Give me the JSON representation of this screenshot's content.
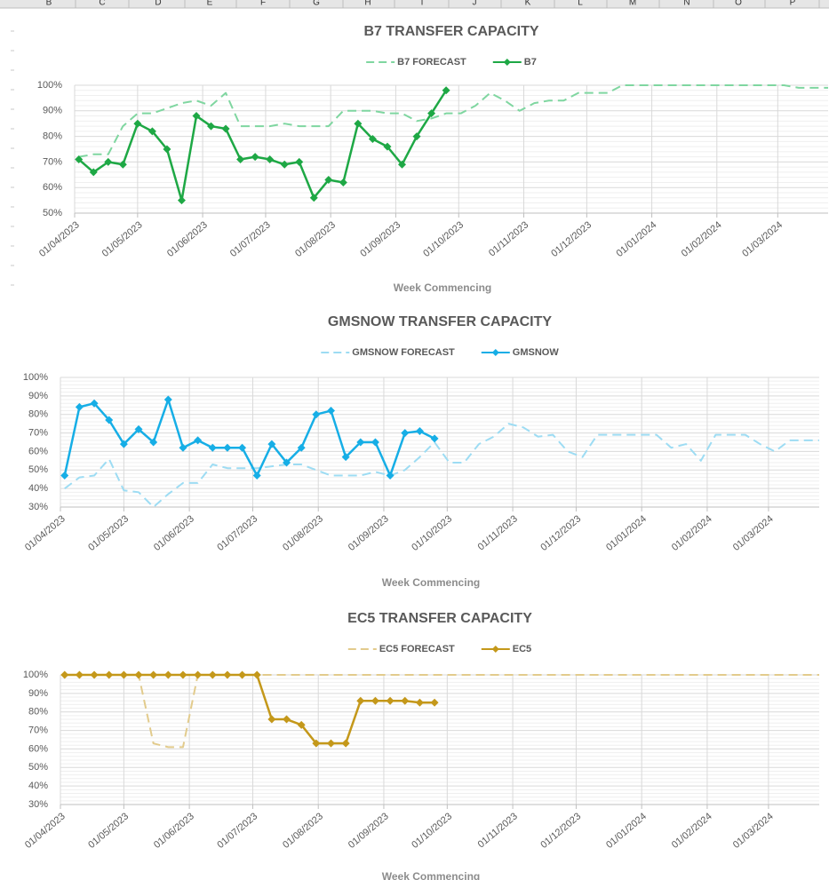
{
  "sheet": {
    "columns": [
      "B",
      "C",
      "D",
      "E",
      "F",
      "G",
      "H",
      "I",
      "J",
      "K",
      "L",
      "M",
      "N",
      "O",
      "P"
    ]
  },
  "chart_data": [
    {
      "type": "line",
      "title": "B7 TRANSFER CAPACITY",
      "x_label": "Week Commencing",
      "grid": true,
      "legend": "top",
      "x": [
        2,
        9,
        16,
        23,
        30,
        37,
        44,
        51,
        58,
        65,
        72,
        79,
        86,
        93,
        100,
        107,
        114,
        121,
        128,
        135,
        142,
        149,
        156,
        163,
        170,
        177,
        184,
        191,
        198,
        205,
        212,
        219,
        226,
        233,
        240,
        247,
        254,
        261,
        268,
        275,
        282,
        289,
        296,
        303,
        310,
        317,
        324,
        331,
        338,
        345,
        352,
        359
      ],
      "xlim": [
        0,
        359
      ],
      "xticks": [
        {
          "value": 0,
          "label": "01/04/2023"
        },
        {
          "value": 30,
          "label": "01/05/2023"
        },
        {
          "value": 61,
          "label": "01/06/2023"
        },
        {
          "value": 91,
          "label": "01/07/2023"
        },
        {
          "value": 122,
          "label": "01/08/2023"
        },
        {
          "value": 153,
          "label": "01/09/2023"
        },
        {
          "value": 183,
          "label": "01/10/2023"
        },
        {
          "value": 214,
          "label": "01/11/2023"
        },
        {
          "value": 244,
          "label": "01/12/2023"
        },
        {
          "value": 275,
          "label": "01/01/2024"
        },
        {
          "value": 306,
          "label": "01/02/2024"
        },
        {
          "value": 335,
          "label": "01/03/2024"
        }
      ],
      "ylim": [
        50,
        100
      ],
      "yticks": [
        {
          "value": 50,
          "label": "50%"
        },
        {
          "value": 60,
          "label": "60%"
        },
        {
          "value": 70,
          "label": "70%"
        },
        {
          "value": 80,
          "label": "80%"
        },
        {
          "value": 90,
          "label": "90%"
        },
        {
          "value": 100,
          "label": "100%"
        }
      ],
      "series": [
        {
          "name": "B7 FORECAST",
          "color": "#7fd6a0",
          "dashed": true,
          "markers": false,
          "values": [
            72,
            73,
            73,
            84,
            89,
            89,
            91,
            93,
            94,
            92,
            97,
            84,
            84,
            84,
            85,
            84,
            84,
            84,
            90,
            90,
            90,
            89,
            89,
            86,
            87,
            89,
            89,
            92,
            97,
            94,
            90,
            93,
            94,
            94,
            97,
            97,
            97,
            100,
            100,
            100,
            100,
            100,
            100,
            100,
            100,
            100,
            100,
            100,
            100,
            99,
            99,
            99
          ]
        },
        {
          "name": "B7",
          "color": "#1ea845",
          "dashed": false,
          "markers": true,
          "values": [
            71,
            66,
            70,
            69,
            85,
            82,
            75,
            55,
            88,
            84,
            83,
            71,
            72,
            71,
            69,
            70,
            56,
            63,
            62,
            85,
            79,
            76,
            69,
            80,
            89,
            98,
            null,
            null,
            null,
            null,
            null,
            null,
            null,
            null,
            null,
            null,
            null,
            null,
            null,
            null,
            null,
            null,
            null,
            null,
            null,
            null,
            null,
            null,
            null,
            null,
            null,
            null
          ]
        }
      ]
    },
    {
      "type": "line",
      "title": "GMSNOW TRANSFER CAPACITY",
      "x_label": "Week Commencing",
      "grid": true,
      "legend": "top",
      "x": [
        2,
        9,
        16,
        23,
        30,
        37,
        44,
        51,
        58,
        65,
        72,
        79,
        86,
        93,
        100,
        107,
        114,
        121,
        128,
        135,
        142,
        149,
        156,
        163,
        170,
        177,
        184,
        191,
        198,
        205,
        212,
        219,
        226,
        233,
        240,
        247,
        254,
        261,
        268,
        275,
        282,
        289,
        296,
        303,
        310,
        317,
        324,
        331,
        338,
        345,
        352,
        359
      ],
      "xlim": [
        0,
        359
      ],
      "xticks": [
        {
          "value": 0,
          "label": "01/04/2023"
        },
        {
          "value": 30,
          "label": "01/05/2023"
        },
        {
          "value": 61,
          "label": "01/06/2023"
        },
        {
          "value": 91,
          "label": "01/07/2023"
        },
        {
          "value": 122,
          "label": "01/08/2023"
        },
        {
          "value": 153,
          "label": "01/09/2023"
        },
        {
          "value": 183,
          "label": "01/10/2023"
        },
        {
          "value": 214,
          "label": "01/11/2023"
        },
        {
          "value": 244,
          "label": "01/12/2023"
        },
        {
          "value": 275,
          "label": "01/01/2024"
        },
        {
          "value": 306,
          "label": "01/02/2024"
        },
        {
          "value": 335,
          "label": "01/03/2024"
        }
      ],
      "ylim": [
        30,
        100
      ],
      "yticks": [
        {
          "value": 30,
          "label": "30%"
        },
        {
          "value": 40,
          "label": "40%"
        },
        {
          "value": 50,
          "label": "50%"
        },
        {
          "value": 60,
          "label": "60%"
        },
        {
          "value": 70,
          "label": "70%"
        },
        {
          "value": 80,
          "label": "80%"
        },
        {
          "value": 90,
          "label": "90%"
        },
        {
          "value": 100,
          "label": "100%"
        }
      ],
      "series": [
        {
          "name": "GMSNOW FORECAST",
          "color": "#9ddcf3",
          "dashed": true,
          "markers": false,
          "values": [
            40,
            46,
            47,
            56,
            39,
            38,
            30,
            37,
            43,
            43,
            53,
            51,
            51,
            51,
            52,
            53,
            53,
            50,
            47,
            47,
            47,
            49,
            47,
            50,
            57,
            65,
            54,
            54,
            64,
            68,
            75,
            73,
            68,
            69,
            60,
            57,
            69,
            69,
            69,
            69,
            69,
            62,
            64,
            55,
            69,
            69,
            69,
            64,
            60,
            66,
            66,
            66
          ]
        },
        {
          "name": "GMSNOW",
          "color": "#16aee6",
          "dashed": false,
          "markers": true,
          "values": [
            47,
            84,
            86,
            77,
            64,
            72,
            65,
            88,
            62,
            66,
            62,
            62,
            62,
            47,
            64,
            54,
            62,
            80,
            82,
            57,
            65,
            65,
            47,
            70,
            71,
            67,
            null,
            null,
            null,
            null,
            null,
            null,
            null,
            null,
            null,
            null,
            null,
            null,
            null,
            null,
            null,
            null,
            null,
            null,
            null,
            null,
            null,
            null,
            null,
            null,
            null,
            null
          ]
        }
      ]
    },
    {
      "type": "line",
      "title": "EC5 TRANSFER CAPACITY",
      "x_label": "Week Commencing",
      "grid": true,
      "legend": "top",
      "x": [
        2,
        9,
        16,
        23,
        30,
        37,
        44,
        51,
        58,
        65,
        72,
        79,
        86,
        93,
        100,
        107,
        114,
        121,
        128,
        135,
        142,
        149,
        156,
        163,
        170,
        177,
        184,
        191,
        198,
        205,
        212,
        219,
        226,
        233,
        240,
        247,
        254,
        261,
        268,
        275,
        282,
        289,
        296,
        303,
        310,
        317,
        324,
        331,
        338,
        345,
        352,
        359
      ],
      "xlim": [
        0,
        359
      ],
      "xticks": [
        {
          "value": 0,
          "label": "01/04/2023"
        },
        {
          "value": 30,
          "label": "01/05/2023"
        },
        {
          "value": 61,
          "label": "01/06/2023"
        },
        {
          "value": 91,
          "label": "01/07/2023"
        },
        {
          "value": 122,
          "label": "01/08/2023"
        },
        {
          "value": 153,
          "label": "01/09/2023"
        },
        {
          "value": 183,
          "label": "01/10/2023"
        },
        {
          "value": 214,
          "label": "01/11/2023"
        },
        {
          "value": 244,
          "label": "01/12/2023"
        },
        {
          "value": 275,
          "label": "01/01/2024"
        },
        {
          "value": 306,
          "label": "01/02/2024"
        },
        {
          "value": 335,
          "label": "01/03/2024"
        }
      ],
      "ylim": [
        30,
        100
      ],
      "yticks": [
        {
          "value": 30,
          "label": "30%"
        },
        {
          "value": 40,
          "label": "40%"
        },
        {
          "value": 50,
          "label": "50%"
        },
        {
          "value": 60,
          "label": "60%"
        },
        {
          "value": 70,
          "label": "70%"
        },
        {
          "value": 80,
          "label": "80%"
        },
        {
          "value": 90,
          "label": "90%"
        },
        {
          "value": 100,
          "label": "100%"
        }
      ],
      "series": [
        {
          "name": "EC5 FORECAST",
          "color": "#e2cb8c",
          "dashed": true,
          "markers": false,
          "values": [
            100,
            100,
            100,
            100,
            100,
            100,
            63,
            61,
            61,
            100,
            100,
            100,
            100,
            100,
            100,
            100,
            100,
            100,
            100,
            100,
            100,
            100,
            100,
            100,
            100,
            100,
            100,
            100,
            100,
            100,
            100,
            100,
            100,
            100,
            100,
            100,
            100,
            100,
            100,
            100,
            100,
            100,
            100,
            100,
            100,
            100,
            100,
            100,
            100,
            100,
            100,
            100
          ]
        },
        {
          "name": "EC5",
          "color": "#c4981a",
          "dashed": false,
          "markers": true,
          "values": [
            100,
            100,
            100,
            100,
            100,
            100,
            100,
            100,
            100,
            100,
            100,
            100,
            100,
            100,
            76,
            76,
            73,
            63,
            63,
            63,
            86,
            86,
            86,
            86,
            85,
            85,
            null,
            null,
            null,
            null,
            null,
            null,
            null,
            null,
            null,
            null,
            null,
            null,
            null,
            null,
            null,
            null,
            null,
            null,
            null,
            null,
            null,
            null,
            null,
            null,
            null,
            null
          ]
        }
      ]
    }
  ]
}
